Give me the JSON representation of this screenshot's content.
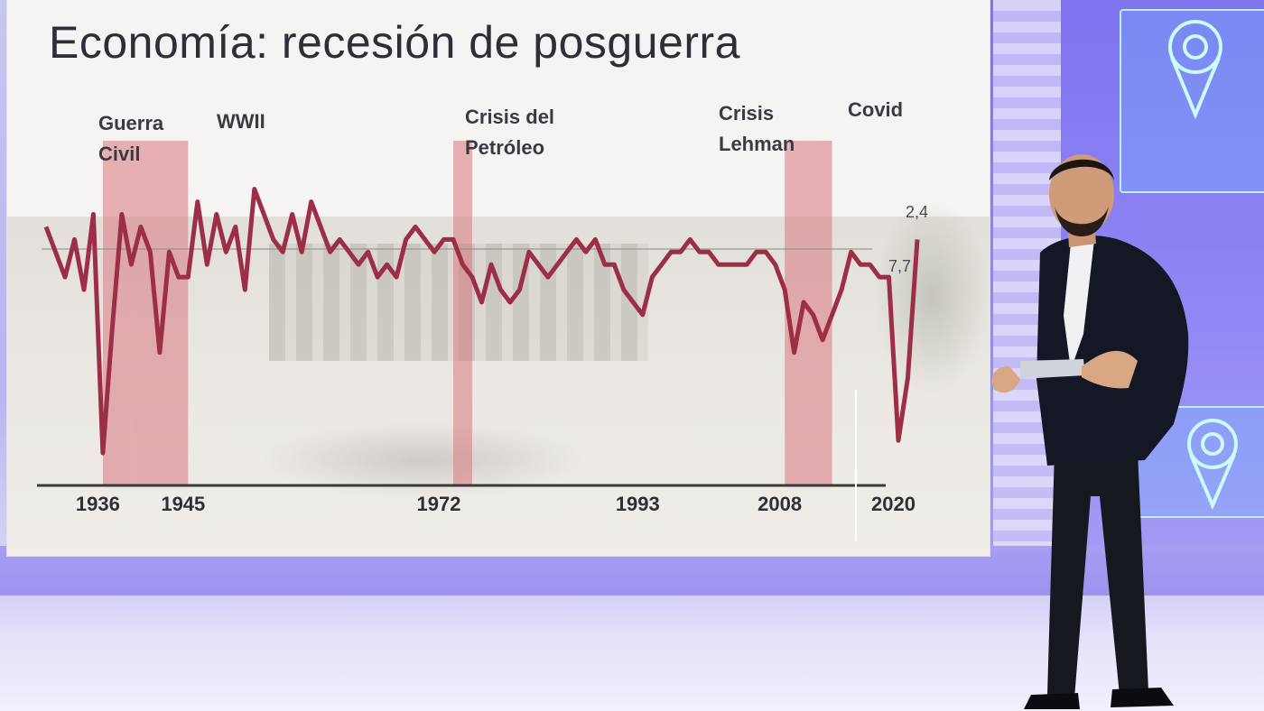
{
  "title": "Economía: recesión de posguerra",
  "chart_data": {
    "type": "line",
    "title": "Economía: recesión de posguerra",
    "xlabel": "",
    "ylabel": "",
    "xlim": [
      1930,
      2022
    ],
    "ylim": [
      -14,
      14
    ],
    "x_ticks": [
      1936,
      1945,
      1972,
      1993,
      2008,
      2020
    ],
    "grid": false,
    "series": [
      {
        "color": "#9c2f45",
        "x": [
          1930,
          1931,
          1932,
          1933,
          1934,
          1935,
          1936,
          1937,
          1938,
          1939,
          1940,
          1941,
          1942,
          1943,
          1944,
          1945,
          1946,
          1947,
          1948,
          1949,
          1950,
          1951,
          1952,
          1953,
          1954,
          1955,
          1956,
          1957,
          1958,
          1959,
          1960,
          1961,
          1962,
          1963,
          1964,
          1965,
          1966,
          1967,
          1968,
          1969,
          1970,
          1971,
          1972,
          1973,
          1974,
          1975,
          1976,
          1977,
          1978,
          1979,
          1980,
          1981,
          1982,
          1983,
          1984,
          1985,
          1986,
          1987,
          1988,
          1989,
          1990,
          1991,
          1992,
          1993,
          1994,
          1995,
          1996,
          1997,
          1998,
          1999,
          2000,
          2001,
          2002,
          2003,
          2004,
          2005,
          2006,
          2007,
          2008,
          2009,
          2010,
          2011,
          2012,
          2013,
          2014,
          2015,
          2016,
          2017,
          2018,
          2019,
          2020,
          2021,
          2022
        ],
        "y": [
          6,
          4,
          2,
          5,
          1,
          7,
          -12,
          -2,
          7,
          3,
          6,
          4,
          -4,
          4,
          2,
          2,
          8,
          3,
          7,
          4,
          6,
          1,
          9,
          7,
          5,
          4,
          7,
          4,
          8,
          6,
          4,
          5,
          4,
          3,
          4,
          2,
          3,
          2,
          5,
          6,
          5,
          4,
          5,
          5,
          3,
          2,
          0,
          3,
          1,
          0,
          1,
          4,
          3,
          2,
          3,
          4,
          5,
          4,
          5,
          3,
          3,
          1,
          0,
          -1,
          2,
          3,
          4,
          4,
          5,
          4,
          4,
          3,
          3,
          3,
          3,
          4,
          4,
          3,
          1,
          -4,
          0,
          -1,
          -3,
          -1,
          1,
          4,
          3,
          3,
          2,
          2,
          -11,
          -6,
          5
        ],
        "annotations": [
          "2,4",
          "7,7"
        ]
      }
    ],
    "shaded_periods": [
      {
        "label": "Guerra Civil",
        "start": 1936,
        "end": 1939
      },
      {
        "label": "WWII",
        "start": 1939,
        "end": 1945
      },
      {
        "label": "Crisis del Petróleo",
        "start": 1973,
        "end": 1975
      },
      {
        "label": "Crisis Lehman",
        "start": 2008,
        "end": 2013
      },
      {
        "label": "Covid",
        "start": 2020,
        "end": 2020
      }
    ]
  },
  "labels": {
    "guerra_civil_1": "Guerra",
    "guerra_civil_2": "Civil",
    "wwii": "WWII",
    "petroleo_1": "Crisis del",
    "petroleo_2": "Petróleo",
    "lehman_1": "Crisis",
    "lehman_2": "Lehman",
    "covid": "Covid",
    "value_top": "2,4",
    "value_bottom": "7,7"
  },
  "years": [
    "1936",
    "1945",
    "1972",
    "1993",
    "2008",
    "2020"
  ],
  "colors": {
    "line": "#9c2f45",
    "shade": "#d9787f",
    "screen_bg": "#f6f4f2",
    "studio_accent": "#8d82f3"
  }
}
